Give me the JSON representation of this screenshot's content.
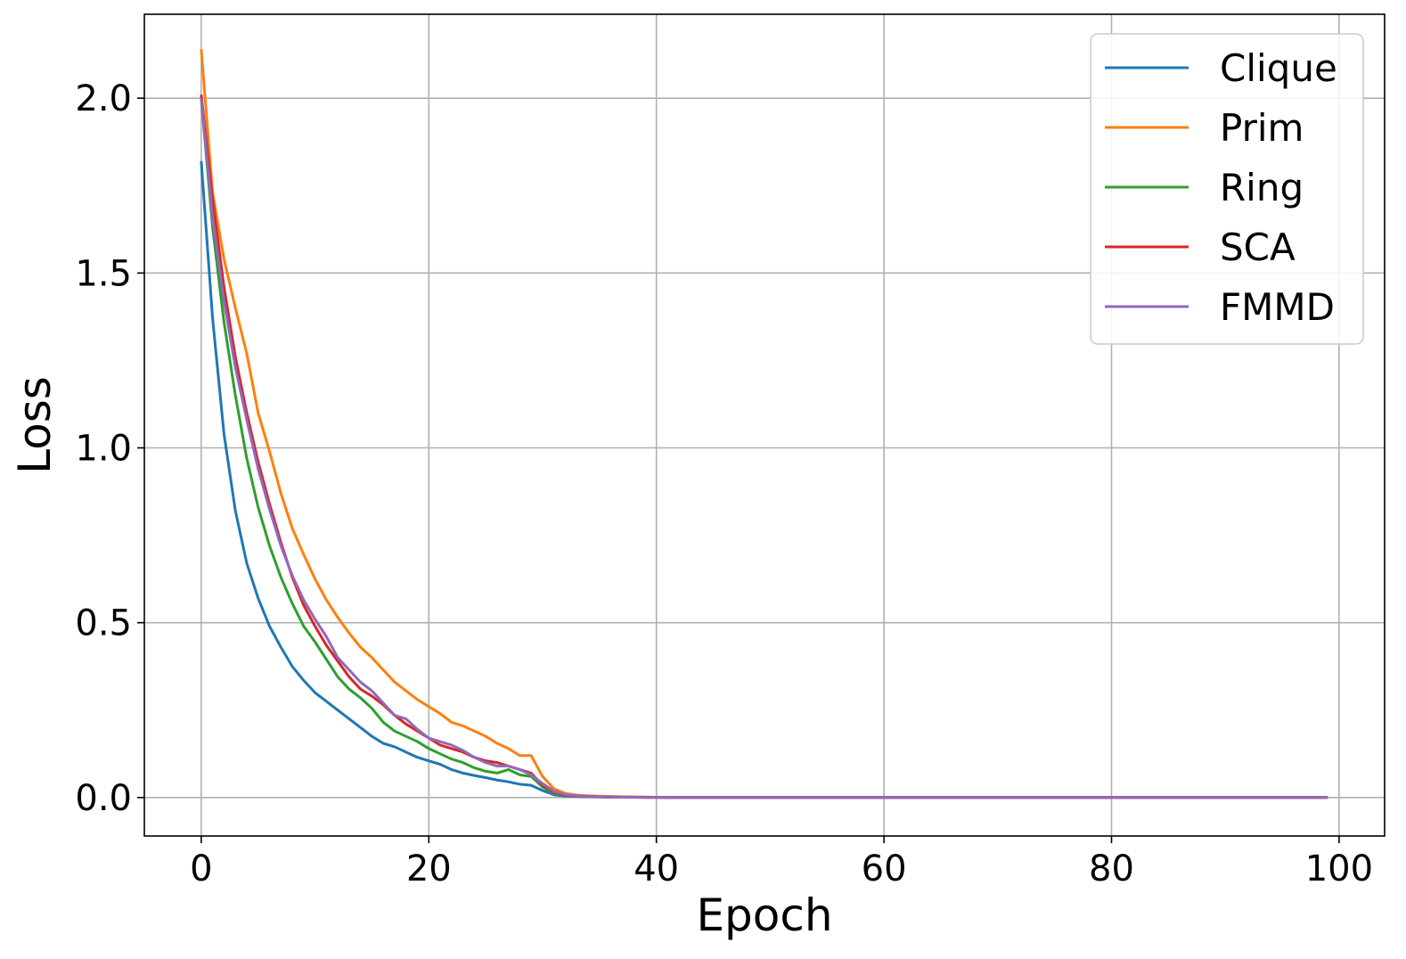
{
  "chart_data": {
    "type": "line",
    "title": "",
    "xlabel": "Epoch",
    "ylabel": "Loss",
    "xlim": [
      -5,
      104
    ],
    "ylim": [
      -0.11,
      2.24
    ],
    "xticks": [
      0,
      20,
      40,
      60,
      80,
      100
    ],
    "yticks": [
      0.0,
      0.5,
      1.0,
      1.5,
      2.0
    ],
    "xtick_labels": [
      "0",
      "20",
      "40",
      "60",
      "80",
      "100"
    ],
    "ytick_labels": [
      "0.0",
      "0.5",
      "1.0",
      "1.5",
      "2.0"
    ],
    "grid": true,
    "legend_position": "top-right",
    "x_range": [
      0,
      99
    ],
    "series": [
      {
        "name": "Clique",
        "color": "#1f77b4",
        "values": [
          1.82,
          1.37,
          1.04,
          0.82,
          0.67,
          0.57,
          0.49,
          0.43,
          0.375,
          0.335,
          0.3,
          0.275,
          0.25,
          0.225,
          0.2,
          0.175,
          0.155,
          0.145,
          0.13,
          0.115,
          0.105,
          0.095,
          0.08,
          0.07,
          0.063,
          0.057,
          0.05,
          0.045,
          0.038,
          0.035,
          0.02,
          0.008,
          0.004,
          0.003,
          0.002,
          0.0015,
          0.001,
          0.001,
          0.0008,
          0.0006,
          0.0005
        ]
      },
      {
        "name": "Prim",
        "color": "#ff7f0e",
        "values": [
          2.14,
          1.73,
          1.54,
          1.4,
          1.27,
          1.1,
          0.99,
          0.87,
          0.77,
          0.695,
          0.625,
          0.565,
          0.515,
          0.47,
          0.43,
          0.4,
          0.365,
          0.33,
          0.305,
          0.28,
          0.26,
          0.24,
          0.215,
          0.205,
          0.19,
          0.175,
          0.155,
          0.14,
          0.12,
          0.12,
          0.06,
          0.025,
          0.012,
          0.007,
          0.005,
          0.004,
          0.003,
          0.0025,
          0.002,
          0.0015,
          0.001
        ]
      },
      {
        "name": "Ring",
        "color": "#2ca02c",
        "values": [
          2.0,
          1.63,
          1.36,
          1.15,
          0.97,
          0.83,
          0.72,
          0.63,
          0.555,
          0.49,
          0.445,
          0.395,
          0.345,
          0.31,
          0.285,
          0.255,
          0.215,
          0.19,
          0.175,
          0.16,
          0.14,
          0.125,
          0.11,
          0.1,
          0.085,
          0.075,
          0.07,
          0.08,
          0.065,
          0.06,
          0.03,
          0.012,
          0.006,
          0.004,
          0.003,
          0.002,
          0.0015,
          0.001,
          0.0008,
          0.0006,
          0.0005
        ]
      },
      {
        "name": "SCA",
        "color": "#d62728",
        "values": [
          2.01,
          1.71,
          1.46,
          1.26,
          1.1,
          0.96,
          0.84,
          0.73,
          0.63,
          0.55,
          0.49,
          0.435,
          0.39,
          0.345,
          0.31,
          0.29,
          0.265,
          0.235,
          0.21,
          0.19,
          0.17,
          0.15,
          0.14,
          0.13,
          0.115,
          0.105,
          0.1,
          0.09,
          0.08,
          0.07,
          0.035,
          0.015,
          0.007,
          0.004,
          0.003,
          0.002,
          0.0015,
          0.001,
          0.0008,
          0.0006,
          0.0005
        ]
      },
      {
        "name": "FMMD",
        "color": "#9467bd",
        "values": [
          2.0,
          1.66,
          1.42,
          1.23,
          1.08,
          0.94,
          0.825,
          0.72,
          0.635,
          0.565,
          0.51,
          0.46,
          0.4,
          0.365,
          0.33,
          0.305,
          0.27,
          0.235,
          0.225,
          0.195,
          0.17,
          0.16,
          0.15,
          0.135,
          0.115,
          0.1,
          0.09,
          0.09,
          0.08,
          0.065,
          0.04,
          0.018,
          0.008,
          0.005,
          0.003,
          0.002,
          0.0015,
          0.001,
          0.0008,
          0.0006,
          0.0005
        ]
      }
    ]
  }
}
